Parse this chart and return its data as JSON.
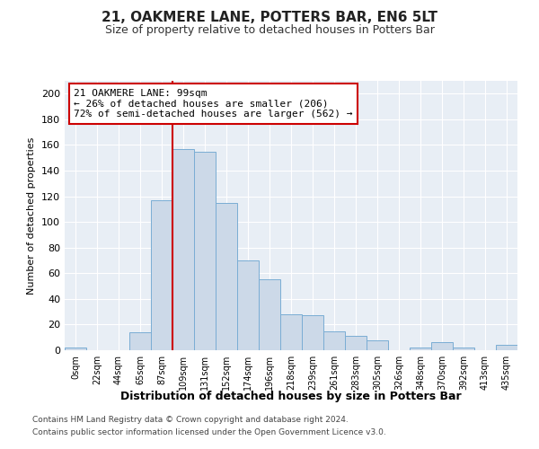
{
  "title": "21, OAKMERE LANE, POTTERS BAR, EN6 5LT",
  "subtitle": "Size of property relative to detached houses in Potters Bar",
  "xlabel": "Distribution of detached houses by size in Potters Bar",
  "ylabel": "Number of detached properties",
  "footnote1": "Contains HM Land Registry data © Crown copyright and database right 2024.",
  "footnote2": "Contains public sector information licensed under the Open Government Licence v3.0.",
  "bin_labels": [
    "0sqm",
    "22sqm",
    "44sqm",
    "65sqm",
    "87sqm",
    "109sqm",
    "131sqm",
    "152sqm",
    "174sqm",
    "196sqm",
    "218sqm",
    "239sqm",
    "261sqm",
    "283sqm",
    "305sqm",
    "326sqm",
    "348sqm",
    "370sqm",
    "392sqm",
    "413sqm",
    "435sqm"
  ],
  "bar_heights": [
    2,
    0,
    0,
    14,
    117,
    157,
    155,
    115,
    70,
    55,
    28,
    27,
    15,
    11,
    8,
    0,
    2,
    6,
    2,
    0,
    4
  ],
  "bar_color": "#ccd9e8",
  "bar_edge_color": "#7aadd4",
  "annotation_text1": "21 OAKMERE LANE: 99sqm",
  "annotation_text2": "← 26% of detached houses are smaller (206)",
  "annotation_text3": "72% of semi-detached houses are larger (562) →",
  "annotation_box_facecolor": "#ffffff",
  "annotation_box_edgecolor": "#cc0000",
  "red_line_color": "#cc0000",
  "red_line_x": 4.5,
  "ylim": [
    0,
    210
  ],
  "yticks": [
    0,
    20,
    40,
    60,
    80,
    100,
    120,
    140,
    160,
    180,
    200
  ],
  "background_color": "#ffffff",
  "plot_background": "#e8eef5",
  "grid_color": "#ffffff",
  "title_fontsize": 11,
  "subtitle_fontsize": 9,
  "ylabel_fontsize": 8,
  "xlabel_fontsize": 9,
  "tick_fontsize": 7,
  "ann_fontsize": 8
}
